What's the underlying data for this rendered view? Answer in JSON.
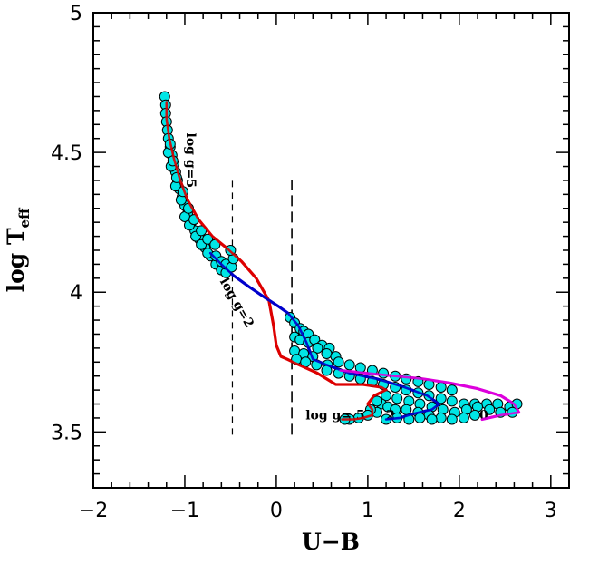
{
  "chart_data": {
    "type": "scatter",
    "xlabel": "U−B",
    "ylabel": "log T",
    "ylabel_sub": "eff",
    "xlim": [
      -2.0,
      3.2
    ],
    "ylim": [
      3.3,
      5.0
    ],
    "x_ticks": [
      -2,
      -1,
      0,
      1,
      2,
      3
    ],
    "x_tick_labels": [
      "−2",
      "−1",
      "0",
      "1",
      "2",
      "3"
    ],
    "y_ticks": [
      3.5,
      4.0,
      4.5,
      5.0
    ],
    "y_tick_labels": [
      "3.5",
      "4",
      "4.5",
      "5"
    ],
    "grid": false,
    "legend": "none",
    "annotations": [
      {
        "text": "log g=5",
        "x": -0.98,
        "y": 4.57,
        "rotation": 90
      },
      {
        "text": "log g=2",
        "x": -0.62,
        "y": 4.04,
        "rotation": 60
      },
      {
        "text": "log g= 5",
        "x": 0.32,
        "y": 3.545
      },
      {
        "text": "2",
        "x": 1.2,
        "y": 3.545
      },
      {
        "text": "0",
        "x": 2.22,
        "y": 3.545
      }
    ],
    "vlines": [
      {
        "x": -0.48,
        "y": [
          3.49,
          4.4
        ],
        "dash": "short"
      },
      {
        "x": 0.17,
        "y": [
          3.49,
          4.4
        ],
        "dash": "long"
      }
    ],
    "series": [
      {
        "color": "#dd0000",
        "points": [
          [
            -1.2,
            4.68
          ],
          [
            -1.2,
            4.62
          ],
          [
            -1.17,
            4.55
          ],
          [
            -1.12,
            4.48
          ],
          [
            -1.05,
            4.4
          ],
          [
            -0.97,
            4.33
          ],
          [
            -0.85,
            4.26
          ],
          [
            -0.7,
            4.2
          ],
          [
            -0.55,
            4.16
          ],
          [
            -0.38,
            4.11
          ],
          [
            -0.22,
            4.05
          ],
          [
            -0.08,
            3.97
          ],
          [
            -0.03,
            3.88
          ],
          [
            0.0,
            3.81
          ],
          [
            0.05,
            3.77
          ],
          [
            0.12,
            3.76
          ],
          [
            0.25,
            3.74
          ],
          [
            0.45,
            3.71
          ],
          [
            0.65,
            3.67
          ],
          [
            0.95,
            3.67
          ],
          [
            1.15,
            3.66
          ],
          [
            1.2,
            3.65
          ],
          [
            1.07,
            3.63
          ],
          [
            1.0,
            3.6
          ],
          [
            1.05,
            3.58
          ],
          [
            1.05,
            3.56
          ],
          [
            0.95,
            3.55
          ],
          [
            0.85,
            3.545
          ],
          [
            0.72,
            3.545
          ]
        ]
      },
      {
        "color": "#0000cc",
        "points": [
          [
            -0.72,
            4.14
          ],
          [
            -0.6,
            4.1
          ],
          [
            -0.47,
            4.06
          ],
          [
            -0.3,
            4.02
          ],
          [
            -0.12,
            3.98
          ],
          [
            0.02,
            3.95
          ],
          [
            0.13,
            3.925
          ],
          [
            0.24,
            3.88
          ],
          [
            0.33,
            3.82
          ],
          [
            0.4,
            3.76
          ],
          [
            0.55,
            3.74
          ],
          [
            0.8,
            3.71
          ],
          [
            1.1,
            3.69
          ],
          [
            1.4,
            3.66
          ],
          [
            1.65,
            3.63
          ],
          [
            1.78,
            3.6
          ],
          [
            1.7,
            3.58
          ],
          [
            1.5,
            3.565
          ],
          [
            1.35,
            3.55
          ],
          [
            1.2,
            3.545
          ]
        ]
      },
      {
        "color": "#dd00dd",
        "points": [
          [
            0.7,
            3.72
          ],
          [
            1.0,
            3.71
          ],
          [
            1.3,
            3.7
          ],
          [
            1.6,
            3.69
          ],
          [
            1.9,
            3.675
          ],
          [
            2.2,
            3.655
          ],
          [
            2.45,
            3.63
          ],
          [
            2.6,
            3.6
          ],
          [
            2.65,
            3.57
          ],
          [
            2.45,
            3.56
          ],
          [
            2.25,
            3.545
          ]
        ]
      },
      {
        "color": "#00e5e5",
        "edge": "#000000",
        "points": [
          [
            -1.22,
            4.7
          ],
          [
            -1.21,
            4.67
          ],
          [
            -1.21,
            4.64
          ],
          [
            -1.2,
            4.61
          ],
          [
            -1.19,
            4.58
          ],
          [
            -1.18,
            4.55
          ],
          [
            -1.16,
            4.52
          ],
          [
            -1.14,
            4.49
          ],
          [
            -1.12,
            4.46
          ],
          [
            -1.1,
            4.43
          ],
          [
            -1.08,
            4.4
          ],
          [
            -1.06,
            4.37
          ],
          [
            -1.03,
            4.34
          ],
          [
            -1.0,
            4.31
          ],
          [
            -0.97,
            4.28
          ],
          [
            -0.93,
            4.25
          ],
          [
            -0.89,
            4.22
          ],
          [
            -0.84,
            4.19
          ],
          [
            -0.78,
            4.16
          ],
          [
            -0.72,
            4.13
          ],
          [
            -0.66,
            4.1
          ],
          [
            -0.6,
            4.08
          ],
          [
            -0.55,
            4.07
          ],
          [
            -1.18,
            4.5
          ],
          [
            -1.15,
            4.45
          ],
          [
            -1.1,
            4.38
          ],
          [
            -1.04,
            4.33
          ],
          [
            -1.0,
            4.27
          ],
          [
            -0.95,
            4.24
          ],
          [
            -0.88,
            4.2
          ],
          [
            -0.82,
            4.17
          ],
          [
            -0.75,
            4.14
          ],
          [
            -0.66,
            4.13
          ],
          [
            -0.6,
            4.11
          ],
          [
            -0.55,
            4.1
          ],
          [
            -0.49,
            4.09
          ],
          [
            -0.47,
            4.12
          ],
          [
            -0.5,
            4.15
          ],
          [
            -1.16,
            4.53
          ],
          [
            -1.13,
            4.47
          ],
          [
            -1.09,
            4.41
          ],
          [
            -1.02,
            4.36
          ],
          [
            -0.96,
            4.3
          ],
          [
            -0.9,
            4.26
          ],
          [
            -0.82,
            4.22
          ],
          [
            -0.75,
            4.19
          ],
          [
            -0.67,
            4.17
          ],
          [
            0.15,
            3.91
          ],
          [
            0.2,
            3.89
          ],
          [
            0.26,
            3.87
          ],
          [
            0.3,
            3.86
          ],
          [
            0.35,
            3.85
          ],
          [
            0.2,
            3.84
          ],
          [
            0.26,
            3.83
          ],
          [
            0.35,
            3.82
          ],
          [
            0.42,
            3.83
          ],
          [
            0.5,
            3.81
          ],
          [
            0.58,
            3.8
          ],
          [
            0.45,
            3.8
          ],
          [
            0.55,
            3.78
          ],
          [
            0.65,
            3.77
          ],
          [
            0.2,
            3.79
          ],
          [
            0.3,
            3.78
          ],
          [
            0.4,
            3.77
          ],
          [
            0.22,
            3.76
          ],
          [
            0.32,
            3.75
          ],
          [
            0.44,
            3.74
          ],
          [
            0.56,
            3.74
          ],
          [
            0.68,
            3.75
          ],
          [
            0.8,
            3.74
          ],
          [
            0.92,
            3.73
          ],
          [
            1.05,
            3.72
          ],
          [
            1.17,
            3.71
          ],
          [
            1.3,
            3.7
          ],
          [
            1.42,
            3.69
          ],
          [
            1.55,
            3.68
          ],
          [
            1.67,
            3.67
          ],
          [
            1.8,
            3.66
          ],
          [
            1.92,
            3.65
          ],
          [
            0.55,
            3.72
          ],
          [
            0.68,
            3.71
          ],
          [
            0.8,
            3.7
          ],
          [
            0.92,
            3.69
          ],
          [
            1.05,
            3.68
          ],
          [
            1.17,
            3.67
          ],
          [
            1.3,
            3.66
          ],
          [
            1.42,
            3.65
          ],
          [
            1.55,
            3.64
          ],
          [
            1.67,
            3.63
          ],
          [
            1.8,
            3.62
          ],
          [
            1.92,
            3.61
          ],
          [
            2.05,
            3.6
          ],
          [
            2.17,
            3.6
          ],
          [
            2.3,
            3.6
          ],
          [
            2.42,
            3.6
          ],
          [
            2.55,
            3.59
          ],
          [
            2.63,
            3.6
          ],
          [
            1.2,
            3.63
          ],
          [
            1.32,
            3.62
          ],
          [
            1.45,
            3.61
          ],
          [
            1.57,
            3.6
          ],
          [
            1.7,
            3.59
          ],
          [
            1.82,
            3.58
          ],
          [
            1.95,
            3.57
          ],
          [
            2.08,
            3.58
          ],
          [
            2.2,
            3.59
          ],
          [
            2.33,
            3.58
          ],
          [
            2.45,
            3.57
          ],
          [
            2.58,
            3.57
          ],
          [
            1.15,
            3.6
          ],
          [
            1.22,
            3.59
          ],
          [
            1.3,
            3.58
          ],
          [
            1.42,
            3.58
          ],
          [
            1.55,
            3.57
          ],
          [
            1.67,
            3.56
          ],
          [
            1.8,
            3.55
          ],
          [
            1.92,
            3.545
          ],
          [
            2.05,
            3.55
          ],
          [
            2.17,
            3.56
          ],
          [
            1.1,
            3.57
          ],
          [
            1.03,
            3.58
          ],
          [
            1.1,
            3.61
          ],
          [
            1.0,
            3.56
          ],
          [
            0.9,
            3.55
          ],
          [
            0.8,
            3.545
          ],
          [
            0.75,
            3.545
          ],
          [
            1.2,
            3.545
          ],
          [
            1.32,
            3.55
          ],
          [
            1.45,
            3.545
          ],
          [
            1.57,
            3.55
          ],
          [
            1.7,
            3.545
          ]
        ]
      }
    ]
  }
}
